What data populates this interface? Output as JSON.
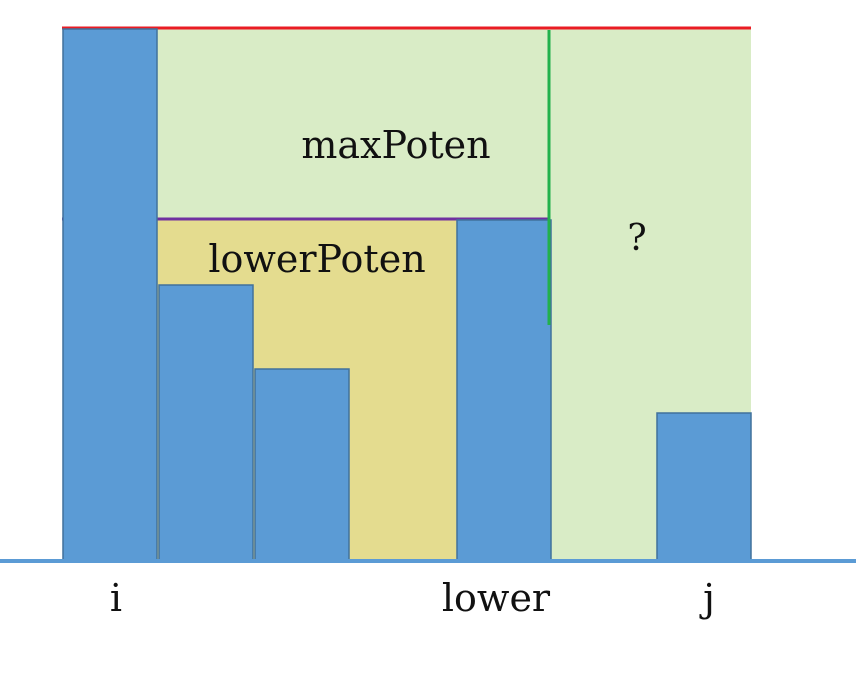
{
  "colors": {
    "bar": "#5b9bd5",
    "bar_stroke": "#41719c",
    "baseline": "#5b9bd5",
    "max_region": "#d9ecc6",
    "lower_region": "#e4dc8f",
    "max_line": "#ea1c24",
    "lower_line": "#7030a0",
    "divider": "#22b14c"
  },
  "labels": {
    "max_poten": "maxPoten",
    "lower_poten": "lowerPoten",
    "unknown": "?",
    "i": "i",
    "lower": "lower",
    "j": "j"
  }
}
